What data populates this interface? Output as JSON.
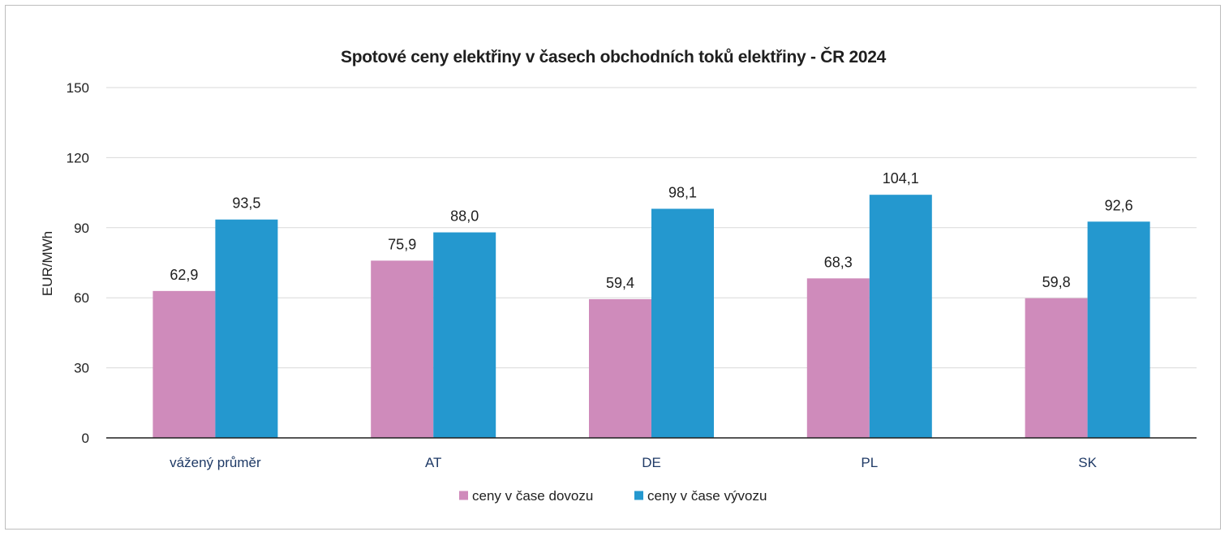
{
  "chart_data": {
    "type": "bar",
    "title": "Spotové ceny elektřiny v časech obchodních toků elektřiny - ČR 2024",
    "ylabel": "EUR/MWh",
    "xlabel": "",
    "ylim": [
      0,
      150
    ],
    "yticks": [
      0,
      30,
      60,
      90,
      120,
      150
    ],
    "grid": true,
    "legend_position": "bottom",
    "categories": [
      "vážený průměr",
      "AT",
      "DE",
      "PL",
      "SK"
    ],
    "series": [
      {
        "name": "ceny v čase dovozu",
        "color": "#cf8bbb",
        "values": [
          62.9,
          75.9,
          59.4,
          68.3,
          59.8
        ],
        "labels": [
          "62,9",
          "75,9",
          "59,4",
          "68,3",
          "59,8"
        ]
      },
      {
        "name": "ceny v čase vývozu",
        "color": "#2498cf",
        "values": [
          93.5,
          88.0,
          98.1,
          104.1,
          92.6
        ],
        "labels": [
          "93,5",
          "88,0",
          "98,1",
          "104,1",
          "92,6"
        ]
      }
    ]
  }
}
